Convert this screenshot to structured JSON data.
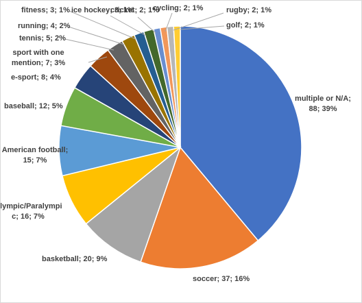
{
  "chart_data": {
    "type": "pie",
    "title": "",
    "slices": [
      {
        "label": "multiple or N/A",
        "value": 88,
        "percent": "39%",
        "color": "#4472C4"
      },
      {
        "label": "soccer",
        "value": 37,
        "percent": "16%",
        "color": "#ED7D31"
      },
      {
        "label": "basketball",
        "value": 20,
        "percent": "9%",
        "color": "#A5A5A5"
      },
      {
        "label": "Olympic/Paralympic",
        "value": 16,
        "percent": "7%",
        "color": "#FFC000"
      },
      {
        "label": "American football",
        "value": 15,
        "percent": "7%",
        "color": "#5B9BD5"
      },
      {
        "label": "baseball",
        "value": 12,
        "percent": "5%",
        "color": "#70AD47"
      },
      {
        "label": "e-sport",
        "value": 8,
        "percent": "4%",
        "color": "#264478"
      },
      {
        "label": "sport with one mention",
        "value": 7,
        "percent": "3%",
        "color": "#9E480E"
      },
      {
        "label": "tennis",
        "value": 5,
        "percent": "2%",
        "color": "#636363"
      },
      {
        "label": "running",
        "value": 4,
        "percent": "2%",
        "color": "#997300"
      },
      {
        "label": "fitness",
        "value": 3,
        "percent": "1%",
        "color": "#255E91"
      },
      {
        "label": "ice hockey",
        "value": 3,
        "percent": "1%",
        "color": "#43682B"
      },
      {
        "label": "cricket",
        "value": 2,
        "percent": "1%",
        "color": "#698ED0"
      },
      {
        "label": "cycling",
        "value": 2,
        "percent": "1%",
        "color": "#F1975A"
      },
      {
        "label": "rugby",
        "value": 2,
        "percent": "1%",
        "color": "#B7B7B7"
      },
      {
        "label": "golf",
        "value": 2,
        "percent": "1%",
        "color": "#FFCD33"
      }
    ],
    "data_labels": [
      [
        "multiple or N/A;",
        "88; 39%"
      ],
      [
        "soccer; 37; 16%"
      ],
      [
        "basketball; 20; 9%"
      ],
      [
        "Olympic/Paralympi",
        "c; 16; 7%"
      ],
      [
        "American football;",
        "15; 7%"
      ],
      [
        "baseball; 12; 5%"
      ],
      [
        "e-sport; 8; 4%"
      ],
      [
        "sport with one",
        "mention; 7; 3%"
      ],
      [
        "tennis; 5; 2%"
      ],
      [
        "running; 4; 2%"
      ],
      [
        "fitness; 3; 1%"
      ],
      [
        "ice hockey; 3; 1%"
      ],
      [
        "cricket; 2; 1%"
      ],
      [
        "cycling; 2; 1%"
      ],
      [
        "rugby; 2; 1%"
      ],
      [
        "golf; 2; 1%"
      ]
    ],
    "label_color": "#404040",
    "leader_line_color": "#A6A6A6",
    "slice_border_color": "#FFFFFF",
    "legend": "none"
  }
}
